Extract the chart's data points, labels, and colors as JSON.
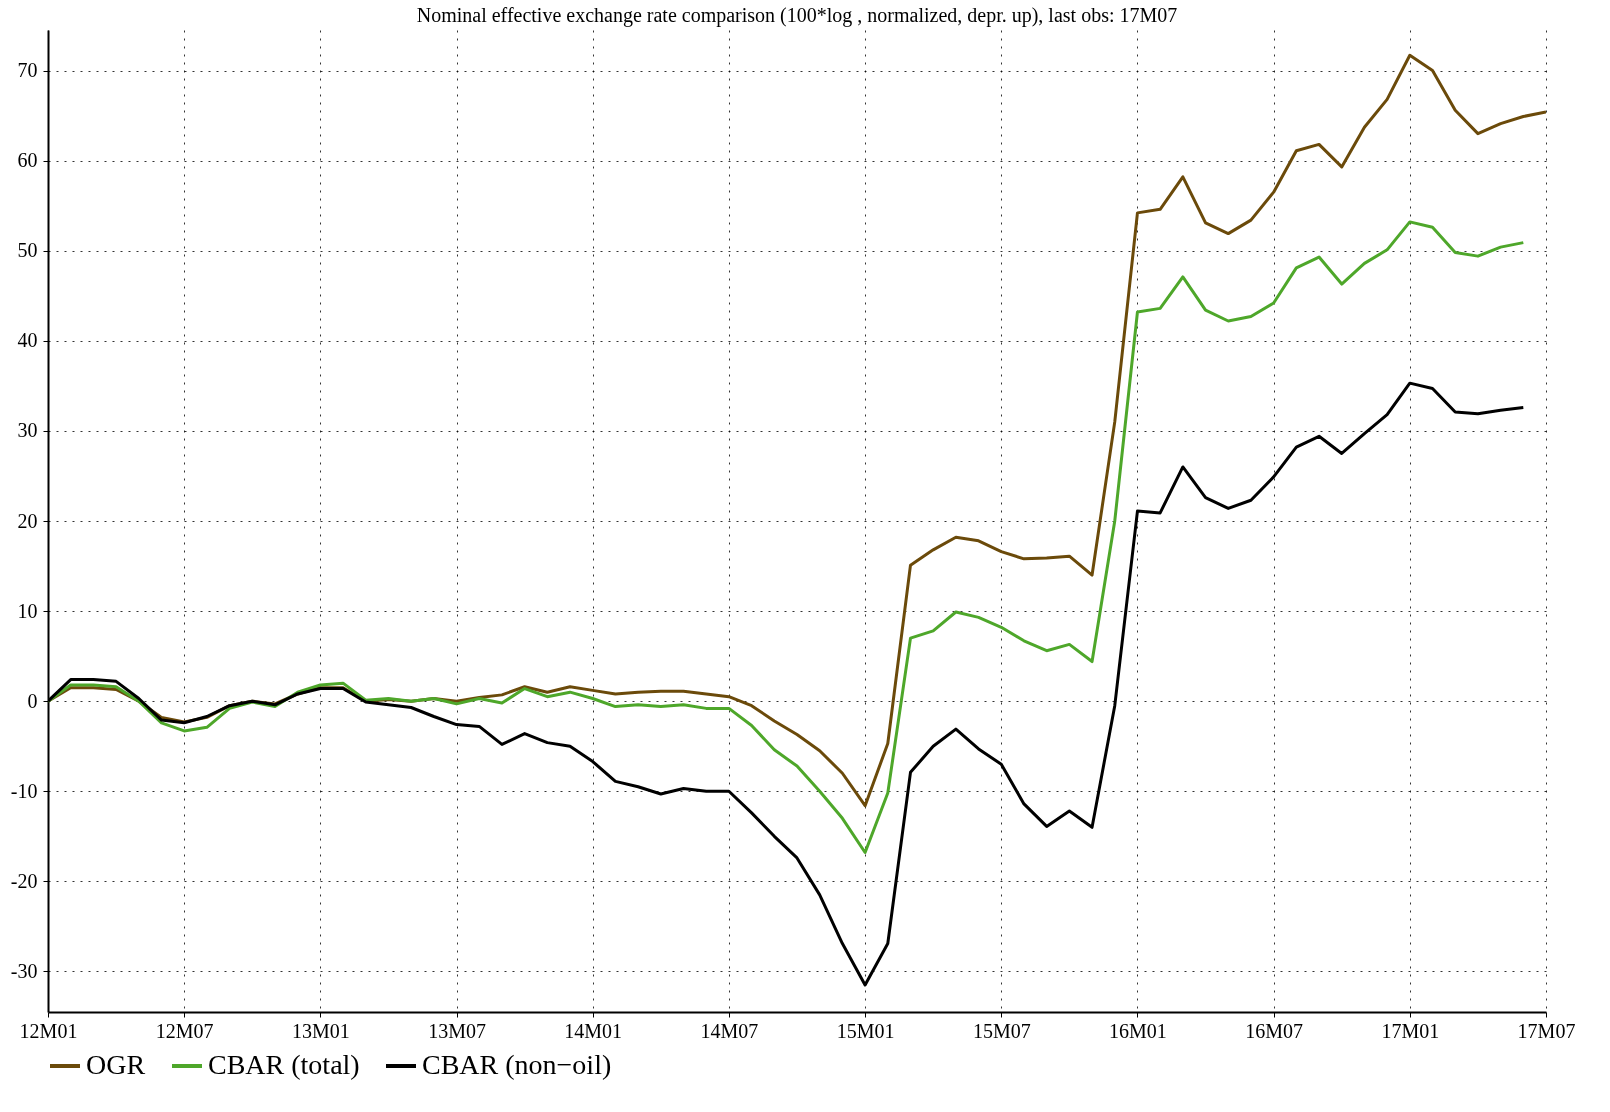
{
  "chart_data": {
    "type": "line",
    "title": "Nominal effective exchange rate comparison (100*log , normalized, depr. up), last obs: 17M07",
    "categories": [
      "12M01",
      null,
      null,
      null,
      null,
      null,
      "12M07",
      null,
      null,
      null,
      null,
      null,
      "13M01",
      null,
      null,
      null,
      null,
      null,
      "13M07",
      null,
      null,
      null,
      null,
      null,
      "14M01",
      null,
      null,
      null,
      null,
      null,
      "14M07",
      null,
      null,
      null,
      null,
      null,
      "15M01",
      null,
      null,
      null,
      null,
      null,
      "15M07",
      null,
      null,
      null,
      null,
      null,
      "16M01",
      null,
      null,
      null,
      null,
      null,
      "16M07",
      null,
      null,
      null,
      null,
      null,
      "17M01",
      null,
      null,
      null,
      null,
      null,
      "17M07"
    ],
    "series": [
      {
        "name": "OGR",
        "color": "#6b4a0a",
        "values": [
          0,
          1.5,
          1.5,
          1.3,
          0,
          -1.8,
          -2.3,
          -1.8,
          -0.5,
          0,
          -0.3,
          0.8,
          1.5,
          1.5,
          0,
          0.2,
          0,
          0.3,
          0,
          0.4,
          0.7,
          1.6,
          1.0,
          1.6,
          1.2,
          0.8,
          1.0,
          1.1,
          1.1,
          0.8,
          0.5,
          -0.5,
          -2.2,
          -3.7,
          -5.5,
          -8.0,
          -11.6,
          -4.7,
          15.1,
          16.8,
          18.2,
          17.8,
          16.6,
          15.8,
          15.9,
          16.1,
          14.0,
          31,
          54.2,
          54.6,
          58.2,
          53.1,
          51.9,
          53.4,
          56.5,
          61.1,
          61.8,
          59.3,
          63.7,
          66.8,
          71.7,
          70.0,
          65.6,
          63.0,
          64.1,
          64.9,
          65.4
        ]
      },
      {
        "name": "CBAR (total)",
        "color": "#4ea72a",
        "values": [
          0,
          1.8,
          1.8,
          1.6,
          0,
          -2.4,
          -3.3,
          -2.9,
          -0.8,
          -0.1,
          -0.6,
          1.0,
          1.8,
          2.0,
          0.1,
          0.3,
          0,
          0.3,
          -0.3,
          0.3,
          -0.2,
          1.4,
          0.5,
          1.0,
          0.3,
          -0.6,
          -0.4,
          -0.6,
          -0.4,
          -0.8,
          -0.8,
          -2.7,
          -5.4,
          -7.2,
          -10.0,
          -13.0,
          -16.8,
          -10.2,
          7.0,
          7.8,
          9.9,
          9.3,
          8.2,
          6.7,
          5.6,
          6.3,
          4.4,
          20,
          43.2,
          43.6,
          47.1,
          43.4,
          42.2,
          42.7,
          44.2,
          48.1,
          49.3,
          46.3,
          48.6,
          50.1,
          53.2,
          52.6,
          49.8,
          49.4,
          50.4,
          50.9,
          null
        ]
      },
      {
        "name": "CBAR (non−oil)",
        "color": "#000000",
        "values": [
          0,
          2.4,
          2.4,
          2.2,
          0.3,
          -2.1,
          -2.4,
          -1.7,
          -0.5,
          0,
          -0.4,
          0.8,
          1.4,
          1.4,
          -0.1,
          -0.4,
          -0.7,
          -1.7,
          -2.6,
          -2.8,
          -4.8,
          -3.6,
          -4.6,
          -5.0,
          -6.7,
          -8.9,
          -9.5,
          -10.3,
          -9.7,
          -10.0,
          -10.0,
          -12.4,
          -15.0,
          -17.4,
          -21.5,
          -26.9,
          -31.5,
          -26.9,
          -7.9,
          -5.0,
          -3.1,
          -5.3,
          -7.0,
          -11.4,
          -13.9,
          -12.2,
          -14.0,
          -0.5,
          21.1,
          20.9,
          26.0,
          22.6,
          21.4,
          22.3,
          24.9,
          28.2,
          29.4,
          27.5,
          29.7,
          31.8,
          35.3,
          34.7,
          32.1,
          31.9,
          32.3,
          32.6,
          null
        ]
      }
    ],
    "ylim": [
      -34.5,
      74.5
    ],
    "yticks": [
      -30,
      -20,
      -10,
      0,
      10,
      20,
      30,
      40,
      50,
      60,
      70
    ],
    "grid": true,
    "legend": "bottom"
  }
}
